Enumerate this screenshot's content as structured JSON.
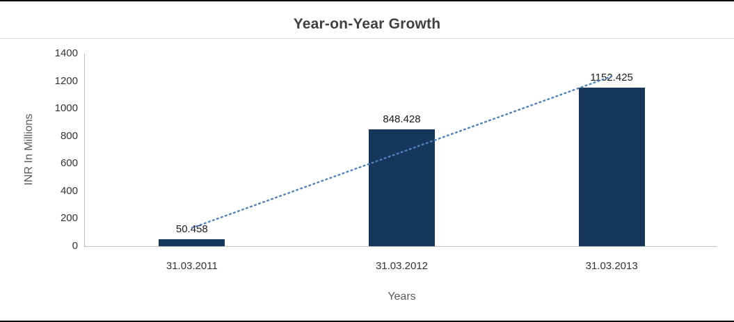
{
  "chart_data": {
    "type": "bar",
    "title": "Year-on-Year Growth",
    "xlabel": "Years",
    "ylabel": "INR In Millions",
    "categories": [
      "31.03.2011",
      "31.03.2012",
      "31.03.2013"
    ],
    "values": [
      50.458,
      848.428,
      1152.425
    ],
    "ylim": [
      0,
      1400
    ],
    "ytick_step": 200,
    "grid": false,
    "legend": "none",
    "bar_color": "#16365c",
    "trendline": {
      "type": "linear",
      "style": "dotted",
      "color": "#4f81bd"
    },
    "axis_line_color": "#bfbfbf"
  }
}
